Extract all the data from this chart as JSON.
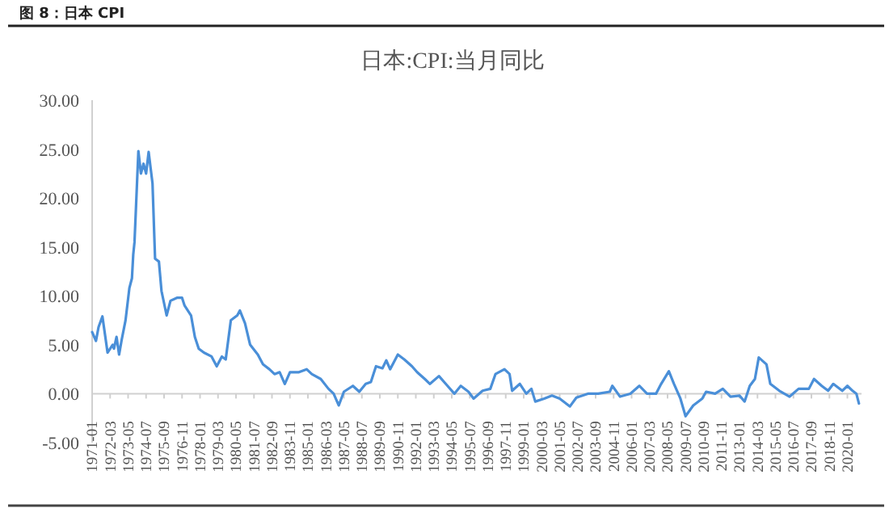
{
  "chart_data": {
    "type": "line",
    "title": "图 8：日本 CPI",
    "subtitle": "日本:CPI:当月同比",
    "x": [
      "1971-01",
      "1971-04",
      "1971-06",
      "1971-09",
      "1972-01",
      "1972-05",
      "1972-06",
      "1972-08",
      "1972-10",
      "1972-12",
      "1973-03",
      "1973-06",
      "1973-08",
      "1973-09",
      "1973-10",
      "1974-01",
      "1974-03",
      "1974-05",
      "1974-07",
      "1974-09",
      "1974-12",
      "1975-02",
      "1975-05",
      "1975-07",
      "1975-11",
      "1976-02",
      "1976-07",
      "1976-11",
      "1977-01",
      "1977-06",
      "1977-09",
      "1977-12",
      "1978-04",
      "1978-10",
      "1979-02",
      "1979-06",
      "1979-09",
      "1980-01",
      "1980-06",
      "1980-08",
      "1980-12",
      "1981-04",
      "1981-10",
      "1982-02",
      "1982-07",
      "1982-11",
      "1983-03",
      "1983-07",
      "1983-11",
      "1984-06",
      "1984-12",
      "1985-04",
      "1985-11",
      "1986-05",
      "1986-09",
      "1987-01",
      "1987-05",
      "1987-12",
      "1988-05",
      "1988-10",
      "1989-02",
      "1989-06",
      "1989-11",
      "1990-02",
      "1990-05",
      "1990-11",
      "1991-04",
      "1991-10",
      "1992-02",
      "1992-08",
      "1992-12",
      "1993-07",
      "1994-01",
      "1994-07",
      "1994-12",
      "1995-06",
      "1995-10",
      "1996-05",
      "1996-11",
      "1997-03",
      "1997-10",
      "1998-02",
      "1998-04",
      "1998-10",
      "1999-03",
      "1999-07",
      "1999-10",
      "2000-05",
      "2000-11",
      "2001-05",
      "2002-01",
      "2002-06",
      "2003-03",
      "2003-11",
      "2004-08",
      "2004-10",
      "2005-04",
      "2005-12",
      "2006-07",
      "2007-01",
      "2007-08",
      "2007-12",
      "2008-06",
      "2008-10",
      "2009-03",
      "2009-07",
      "2010-01",
      "2010-08",
      "2010-11",
      "2011-06",
      "2011-12",
      "2012-06",
      "2013-01",
      "2013-05",
      "2013-09",
      "2014-01",
      "2014-04",
      "2014-10",
      "2015-01",
      "2015-08",
      "2016-04",
      "2016-11",
      "2017-07",
      "2017-11",
      "2018-05",
      "2018-10",
      "2019-02",
      "2019-09",
      "2020-01",
      "2020-05",
      "2020-08",
      "2020-10"
    ],
    "series": [
      {
        "color": "#4a8fd8",
        "values": [
          6.3,
          5.4,
          6.8,
          7.9,
          4.2,
          5.0,
          4.6,
          5.8,
          4.0,
          5.5,
          7.5,
          10.8,
          11.8,
          14.2,
          15.5,
          24.8,
          22.5,
          23.5,
          22.5,
          24.7,
          21.5,
          13.8,
          13.5,
          10.5,
          8.0,
          9.5,
          9.8,
          9.8,
          9.0,
          8.0,
          5.8,
          4.6,
          4.2,
          3.8,
          2.8,
          3.8,
          3.5,
          7.5,
          8.0,
          8.5,
          7.2,
          5.0,
          4.0,
          3.0,
          2.5,
          2.0,
          2.2,
          1.0,
          2.2,
          2.2,
          2.5,
          2.0,
          1.5,
          0.5,
          0.0,
          -1.2,
          0.2,
          0.8,
          0.2,
          1.0,
          1.2,
          2.8,
          2.6,
          3.4,
          2.5,
          4.0,
          3.5,
          2.8,
          2.2,
          1.5,
          1.0,
          1.8,
          0.9,
          0.0,
          0.8,
          0.2,
          -0.5,
          0.3,
          0.5,
          2.0,
          2.5,
          2.0,
          0.3,
          1.0,
          0.0,
          0.5,
          -0.8,
          -0.5,
          -0.2,
          -0.5,
          -1.3,
          -0.4,
          0.0,
          0.0,
          0.2,
          0.8,
          -0.3,
          0.0,
          0.8,
          0.0,
          0.0,
          1.0,
          2.3,
          1.0,
          -0.5,
          -2.3,
          -1.2,
          -0.5,
          0.2,
          0.0,
          0.5,
          -0.3,
          -0.2,
          -0.8,
          0.8,
          1.5,
          3.7,
          3.0,
          1.0,
          0.3,
          -0.3,
          0.5,
          0.5,
          1.5,
          0.8,
          0.3,
          1.0,
          0.3,
          0.8,
          0.3,
          0.0,
          -1.0
        ]
      }
    ],
    "xlim": [
      "1971-01",
      "2020-12"
    ],
    "xticks": [
      "1971-01",
      "1972-03",
      "1973-05",
      "1974-07",
      "1975-09",
      "1976-11",
      "1978-01",
      "1979-03",
      "1980-05",
      "1981-07",
      "1982-09",
      "1983-11",
      "1985-01",
      "1986-03",
      "1987-05",
      "1988-07",
      "1989-09",
      "1990-11",
      "1992-01",
      "1993-03",
      "1994-05",
      "1995-07",
      "1996-09",
      "1997-11",
      "1999-01",
      "2000-03",
      "2001-05",
      "2002-07",
      "2003-09",
      "2004-11",
      "2006-01",
      "2007-03",
      "2008-05",
      "2009-07",
      "2010-09",
      "2011-11",
      "2013-01",
      "2014-03",
      "2015-05",
      "2016-07",
      "2017-09",
      "2018-11",
      "2020-01"
    ],
    "ylim": [
      -5,
      30
    ],
    "yticks": [
      {
        "value": -5,
        "label": "-5.00"
      },
      {
        "value": 0,
        "label": "0.00"
      },
      {
        "value": 5,
        "label": "5.00"
      },
      {
        "value": 10,
        "label": "10.00"
      },
      {
        "value": 15,
        "label": "15.00"
      },
      {
        "value": 20,
        "label": "20.00"
      },
      {
        "value": 25,
        "label": "25.00"
      },
      {
        "value": 30,
        "label": "30.00"
      }
    ],
    "line_style": "solid"
  }
}
